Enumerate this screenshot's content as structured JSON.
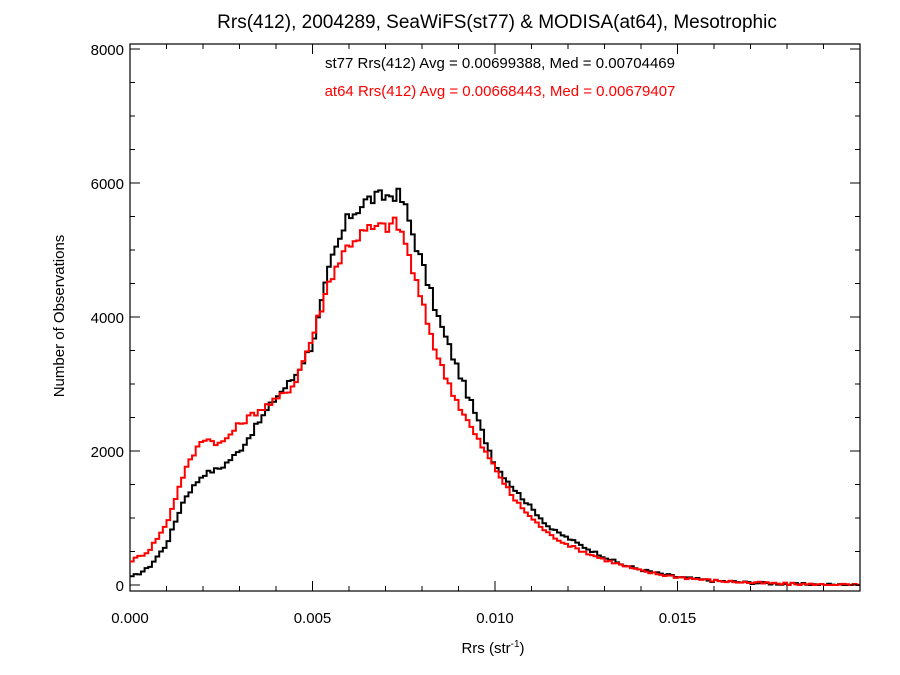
{
  "chart_data": {
    "type": "line",
    "style": "step histogram",
    "title": "Rrs(412), 2004289, SeaWiFS(st77) & MODISA(at64), Mesotrophic",
    "xlabel": "Rrs (str",
    "xlabel_sup": "-1",
    "xlabel_close": ")",
    "ylabel": "Number of Observations",
    "xlim": [
      0.0,
      0.02
    ],
    "ylim": [
      0,
      8000
    ],
    "x_ticks": [
      0.0,
      0.005,
      0.01,
      0.015
    ],
    "x_tick_labels": [
      "0.000",
      "0.005",
      "0.010",
      "0.015"
    ],
    "y_ticks": [
      0,
      2000,
      4000,
      6000,
      8000
    ],
    "y_tick_labels": [
      "0",
      "2000",
      "4000",
      "6000",
      "8000"
    ],
    "grid": false,
    "annotations": [
      {
        "text": "st77 Rrs(412) Avg = 0.00699388, Med = 0.00704469",
        "color": "#000000"
      },
      {
        "text": "at64 Rrs(412) Avg = 0.00668443, Med = 0.00679407",
        "color": "#ff0000"
      }
    ],
    "x": [
      0.0,
      0.0005,
      0.001,
      0.0015,
      0.002,
      0.0025,
      0.003,
      0.0035,
      0.004,
      0.0045,
      0.005,
      0.0055,
      0.006,
      0.0065,
      0.007,
      0.0073,
      0.0075,
      0.008,
      0.0085,
      0.009,
      0.0095,
      0.01,
      0.0105,
      0.011,
      0.0115,
      0.012,
      0.0125,
      0.013,
      0.0135,
      0.014,
      0.0145,
      0.015,
      0.0155,
      0.016,
      0.0165,
      0.017,
      0.0175,
      0.018,
      0.0185,
      0.019,
      0.0195,
      0.02
    ],
    "series": [
      {
        "name": "st77",
        "color": "#000000",
        "values": [
          100,
          250,
          600,
          1300,
          1650,
          1750,
          2000,
          2400,
          2800,
          3100,
          3600,
          4800,
          5500,
          5750,
          5800,
          5850,
          5700,
          4800,
          3900,
          3200,
          2500,
          1800,
          1450,
          1150,
          850,
          700,
          550,
          420,
          300,
          230,
          170,
          120,
          90,
          60,
          50,
          35,
          25,
          15,
          10,
          5,
          2,
          0
        ]
      },
      {
        "name": "at64",
        "color": "#ff0000",
        "values": [
          350,
          500,
          900,
          1700,
          2200,
          2100,
          2400,
          2600,
          2750,
          3000,
          3700,
          4600,
          5100,
          5300,
          5350,
          5400,
          5200,
          4200,
          3300,
          2700,
          2200,
          1750,
          1300,
          1000,
          750,
          600,
          480,
          380,
          290,
          210,
          160,
          120,
          90,
          65,
          50,
          35,
          25,
          15,
          10,
          5,
          2,
          0
        ]
      }
    ]
  }
}
